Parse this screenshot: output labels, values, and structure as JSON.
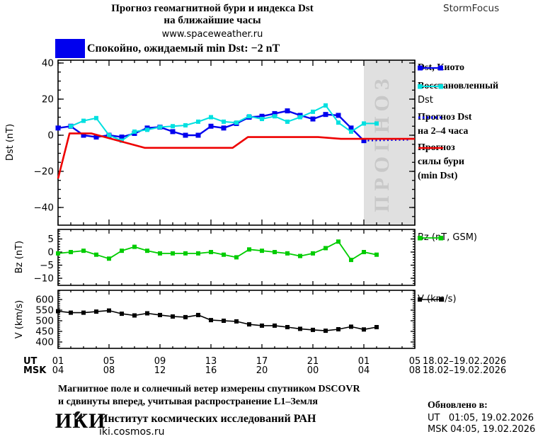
{
  "header": {
    "title_line1": "Прогноз геомагнитной бури и индекса Dst",
    "title_line2": "на ближайшие часы",
    "website": "www.spaceweather.ru",
    "brand": "StormFocus"
  },
  "banner": {
    "label": "Спокойно, ожидаемый min Dst: −2 nT"
  },
  "legend": {
    "dst_kyoto": "Dst, Киото",
    "restored_line1": "Восстановленный",
    "restored_line2": "Dst",
    "forecast_dst_line1": "Прогноз Dst",
    "forecast_dst_line2": "на 2–4 часа",
    "storm_line1": "Прогноз",
    "storm_line2": "силы бури",
    "storm_line3": "(min Dst)",
    "bz": "Bz (nT, GSM)",
    "v": "V (km/s)"
  },
  "forecast_band": {
    "label": "ПРОГНОЗ"
  },
  "xaxis": {
    "ut_label": "UT",
    "msk_label": "MSK",
    "ut_ticks": [
      "01",
      "05",
      "09",
      "13",
      "17",
      "21",
      "01",
      "05"
    ],
    "msk_ticks": [
      "04",
      "08",
      "12",
      "16",
      "20",
      "00",
      "04",
      "08"
    ],
    "ut_date": "18.02–19.02.2026",
    "msk_date": "18.02–19.02.2026"
  },
  "footer": {
    "note_line1": "Магнитное поле и солнечный ветер измерены спутником DSCOVR",
    "note_line2": "и сдвинуты вперед, учитывая распространение L1–Земля",
    "logo": "ИКИ",
    "institute": "Институт космических исследований РАН",
    "institute_site": "iki.cosmos.ru",
    "updated_label": "Обновлено в:",
    "updated_ut": "UT   01:05, 19.02.2026",
    "updated_msk": "MSK 04:05, 19.02.2026"
  },
  "colors": {
    "dst_kyoto": "#0000EE",
    "restored_dst": "#00E0E0",
    "forecast_dst": "#0000EE",
    "forecast_storm": "#EE0000",
    "bz": "#00CC00",
    "v": "#000000",
    "banner": "#0000EE",
    "forecast_band": "#E0E0E0",
    "forecast_band_label": "#C8C8C8"
  },
  "chart_data": [
    {
      "type": "line",
      "title": "Прогноз геомагнитной бури и индекса Dst на ближайшие часы",
      "ylabel": "Dst (nT)",
      "yticks": [
        40,
        20,
        0,
        -20,
        -40
      ],
      "ylim": [
        -50,
        42
      ],
      "xlim_hours_ut": [
        1,
        29
      ],
      "x_unit": "hour UT (01 = 01:00 UT 18.02.2026)",
      "grid": false,
      "legend_position": "right",
      "forecast_band": {
        "start_hour": 25,
        "end_hour": 29,
        "label": "ПРОГНОЗ"
      },
      "series": [
        {
          "id": "dst_kyoto",
          "name": "Dst, Киото",
          "color": "#0000EE",
          "marker": "square",
          "x": [
            1,
            2,
            3,
            4,
            5,
            6,
            7,
            8,
            9,
            10,
            11,
            12,
            13,
            14,
            15,
            16,
            17,
            18,
            19,
            20,
            21,
            22,
            23,
            24,
            25
          ],
          "values": [
            4,
            5,
            0,
            -1,
            0,
            -1,
            1,
            4,
            4.5,
            2,
            0,
            0,
            5,
            4,
            6.5,
            10,
            10.5,
            12,
            13.5,
            11,
            9,
            11.5,
            11,
            4,
            -3
          ]
        },
        {
          "id": "restored_dst",
          "name": "Восстановленный Dst",
          "color": "#00E0E0",
          "marker": "square",
          "x": [
            2,
            3,
            4,
            5,
            6,
            7,
            8,
            9,
            10,
            11,
            12,
            13,
            14,
            15,
            16,
            17,
            18,
            19,
            20,
            21,
            22,
            23,
            24,
            25,
            26
          ],
          "values": [
            5,
            8,
            9.5,
            0,
            -3,
            2,
            3,
            4.5,
            5,
            5.5,
            7.5,
            10,
            7.5,
            7,
            10.5,
            9,
            10.5,
            7.5,
            10,
            13,
            16.5,
            7,
            2,
            6.5,
            6.5
          ]
        },
        {
          "id": "forecast_dst",
          "name": "Прогноз Dst на 2–4 часа",
          "color": "#0000EE",
          "style": "dotted",
          "x": [
            25,
            28.6
          ],
          "values": [
            -3,
            -2.5
          ]
        },
        {
          "id": "forecast_storm",
          "name": "Прогноз силы бури (min Dst)",
          "color": "#EE0000",
          "style": "solid",
          "x": [
            1,
            1.9,
            3.6,
            7.8,
            14.7,
            15.9,
            21.4,
            23.2,
            29
          ],
          "values": [
            -24,
            1,
            1,
            -7,
            -7,
            -1,
            -1,
            -2,
            -2
          ]
        }
      ]
    },
    {
      "type": "line",
      "ylabel": "Bz (nT)",
      "yticks": [
        5,
        0,
        -5,
        -10
      ],
      "ylim": [
        -12.7,
        8.6
      ],
      "xlim_hours_ut": [
        1,
        29
      ],
      "grid": false,
      "series": [
        {
          "id": "bz",
          "name": "Bz (nT, GSM)",
          "color": "#00CC00",
          "marker": "square",
          "x": [
            1,
            2,
            3,
            4,
            5,
            6,
            7,
            8,
            9,
            10,
            11,
            12,
            13,
            14,
            15,
            16,
            17,
            18,
            19,
            20,
            21,
            22,
            23,
            24,
            25,
            26
          ],
          "values": [
            -0.5,
            0,
            0.5,
            -1,
            -2.5,
            0.5,
            2,
            0.5,
            -0.5,
            -0.5,
            -0.5,
            -0.5,
            0,
            -1,
            -2,
            1,
            0.5,
            0,
            -0.5,
            -1.5,
            -0.5,
            1.5,
            4,
            -3,
            0,
            -1
          ]
        }
      ]
    },
    {
      "type": "line",
      "ylabel": "V (km/s)",
      "yticks": [
        600,
        550,
        500,
        450,
        400
      ],
      "ylim": [
        370,
        643
      ],
      "xlim_hours_ut": [
        1,
        29
      ],
      "grid": false,
      "series": [
        {
          "id": "v",
          "name": "V (km/s)",
          "color": "#000000",
          "marker": "square",
          "x": [
            1,
            2,
            3,
            4,
            5,
            6,
            7,
            8,
            9,
            10,
            11,
            12,
            13,
            14,
            15,
            16,
            17,
            18,
            19,
            20,
            21,
            22,
            23,
            24,
            25,
            26
          ],
          "values": [
            545,
            538,
            538,
            543,
            548,
            533,
            525,
            535,
            527,
            520,
            517,
            527,
            503,
            500,
            497,
            483,
            477,
            477,
            470,
            462,
            457,
            453,
            460,
            472,
            459,
            470
          ]
        }
      ]
    }
  ]
}
